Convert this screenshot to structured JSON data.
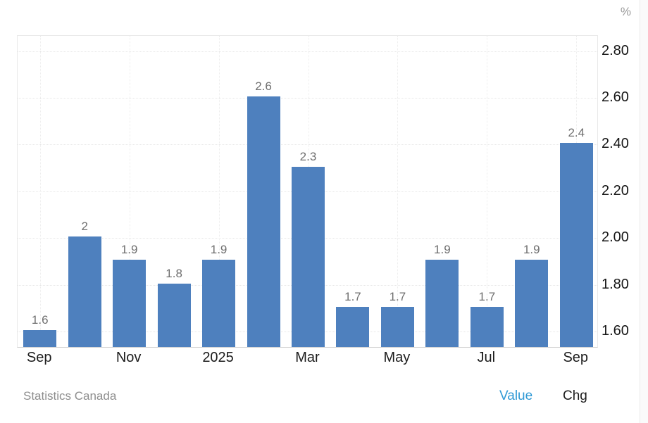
{
  "header": {
    "unit": "%"
  },
  "chart_data": {
    "type": "bar",
    "values": [
      1.6,
      2,
      1.9,
      1.8,
      1.9,
      2.6,
      2.3,
      1.7,
      1.7,
      1.9,
      1.7,
      1.9,
      2.4
    ],
    "bar_value_labels": [
      "1.6",
      "2",
      "1.9",
      "1.8",
      "1.9",
      "2.6",
      "2.3",
      "1.7",
      "1.7",
      "1.9",
      "1.7",
      "1.9",
      "2.4"
    ],
    "x_ticks": [
      {
        "index": 0,
        "label": "Sep"
      },
      {
        "index": 2,
        "label": "Nov"
      },
      {
        "index": 4,
        "label": "2025"
      },
      {
        "index": 6,
        "label": "Mar"
      },
      {
        "index": 8,
        "label": "May"
      },
      {
        "index": 10,
        "label": "Jul"
      },
      {
        "index": 12,
        "label": "Sep"
      }
    ],
    "y_tick_labels": [
      "1.60",
      "1.80",
      "2.00",
      "2.20",
      "2.40",
      "2.60",
      "2.80"
    ],
    "ylim": [
      1.528,
      2.865
    ],
    "ylabel": "%",
    "grid": true,
    "bar_color": "#4e80be",
    "source": "Statistics Canada"
  },
  "footer": {
    "source": "Statistics Canada",
    "value_label": "Value",
    "chg_label": "Chg",
    "value_color": "#2f99d5",
    "chg_color": "#1c1c1c"
  }
}
